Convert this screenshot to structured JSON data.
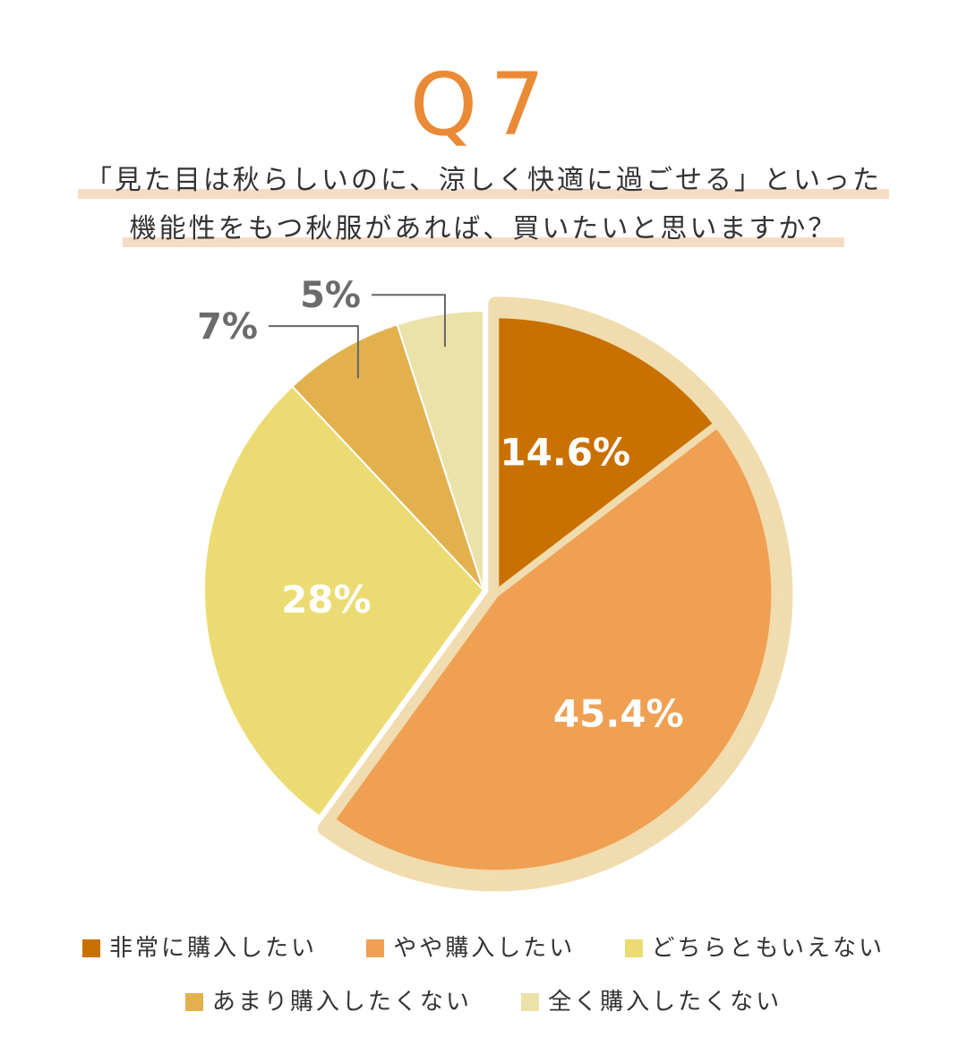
{
  "title": "Q7",
  "question": {
    "line1": "「見た目は秋らしいのに、涼しく快適に過ごせる」といった",
    "line2": "機能性をもつ秋服があれば、買いたいと思いますか？"
  },
  "colors": {
    "title": "#ea8a36",
    "highlight": "#f7dcc4",
    "explode_border": "#f0dcae"
  },
  "chart_data": {
    "type": "pie",
    "start": "12 o'clock, clockwise",
    "exploded": [
      "非常に購入したい",
      "やや購入したい"
    ],
    "slices": [
      {
        "label": "非常に購入したい",
        "value": 14.6,
        "value_label": "14.6%",
        "color": "#c97100",
        "label_style": "inside"
      },
      {
        "label": "やや購入したい",
        "value": 45.4,
        "value_label": "45.4%",
        "color": "#efa052",
        "label_style": "inside"
      },
      {
        "label": "どちらともいえない",
        "value": 28,
        "value_label": "28%",
        "color": "#ecdb72",
        "label_style": "inside"
      },
      {
        "label": "あまり購入したくない",
        "value": 7,
        "value_label": "7%",
        "color": "#e2b14e",
        "label_style": "outside"
      },
      {
        "label": "全く購入したくない",
        "value": 5,
        "value_label": "5%",
        "color": "#ebe2aa",
        "label_style": "outside"
      }
    ]
  },
  "legend": {
    "items": [
      {
        "label": "非常に購入したい",
        "color": "#c97100"
      },
      {
        "label": "やや購入したい",
        "color": "#efa052"
      },
      {
        "label": "どちらともいえない",
        "color": "#ecdb72"
      },
      {
        "label": "あまり購入したくない",
        "color": "#e2b14e"
      },
      {
        "label": "全く購入したくない",
        "color": "#ebe2aa"
      }
    ]
  }
}
